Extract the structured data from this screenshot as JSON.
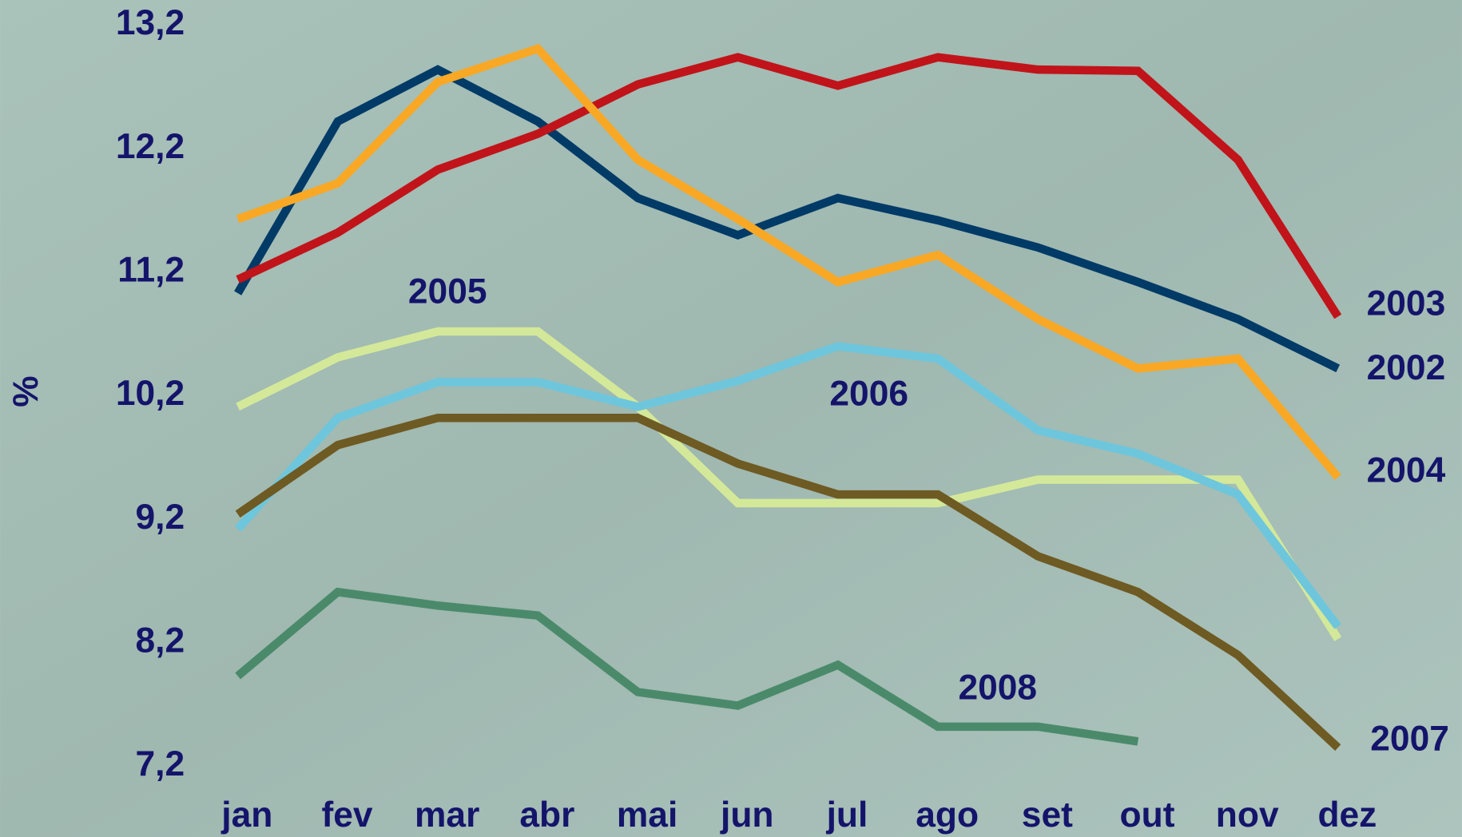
{
  "chart_data": {
    "type": "line",
    "ylabel": "%",
    "categories": [
      "jan",
      "fev",
      "mar",
      "abr",
      "mai",
      "jun",
      "jul",
      "ago",
      "set",
      "out",
      "nov",
      "dez"
    ],
    "ylim": [
      7.2,
      13.2
    ],
    "yticks": [
      {
        "value": 7.2,
        "label": "7,2"
      },
      {
        "value": 8.2,
        "label": "8,2"
      },
      {
        "value": 9.2,
        "label": "9,2"
      },
      {
        "value": 10.2,
        "label": "10,2"
      },
      {
        "value": 11.2,
        "label": "11,2"
      },
      {
        "value": 12.2,
        "label": "12,2"
      },
      {
        "value": 13.2,
        "label": "13,2"
      }
    ],
    "grid": false,
    "series": [
      {
        "name": "2002",
        "color": "#003a66",
        "values": [
          11.03,
          12.42,
          12.84,
          12.42,
          11.8,
          11.5,
          11.8,
          11.62,
          11.4,
          11.12,
          10.82,
          10.42
        ]
      },
      {
        "name": "2003",
        "color": "#c0141a",
        "values": [
          11.14,
          11.52,
          12.03,
          12.32,
          12.72,
          12.94,
          12.71,
          12.94,
          12.84,
          12.83,
          12.11,
          10.84
        ]
      },
      {
        "name": "2004",
        "color": "#f9a825",
        "values": [
          11.63,
          11.92,
          12.74,
          13.01,
          12.11,
          11.63,
          11.12,
          11.34,
          10.82,
          10.42,
          10.5,
          9.54
        ]
      },
      {
        "name": "2005",
        "color": "#d4e89a",
        "values": [
          10.11,
          10.51,
          10.72,
          10.72,
          10.11,
          9.33,
          9.33,
          9.33,
          9.52,
          9.52,
          9.52,
          8.23
        ]
      },
      {
        "name": "2006",
        "color": "#6ec6dc",
        "values": [
          9.12,
          10.02,
          10.31,
          10.31,
          10.11,
          10.32,
          10.6,
          10.5,
          9.92,
          9.73,
          9.4,
          8.33
        ]
      },
      {
        "name": "2007",
        "color": "#6e5a23",
        "values": [
          9.24,
          9.8,
          10.02,
          10.02,
          10.02,
          9.65,
          9.4,
          9.4,
          8.9,
          8.61,
          8.1,
          7.35
        ]
      },
      {
        "name": "2008",
        "color": "#4a8a6a",
        "values": [
          7.93,
          8.61,
          8.5,
          8.42,
          7.8,
          7.69,
          8.02,
          7.52,
          7.52,
          7.4,
          null,
          null
        ]
      }
    ]
  }
}
